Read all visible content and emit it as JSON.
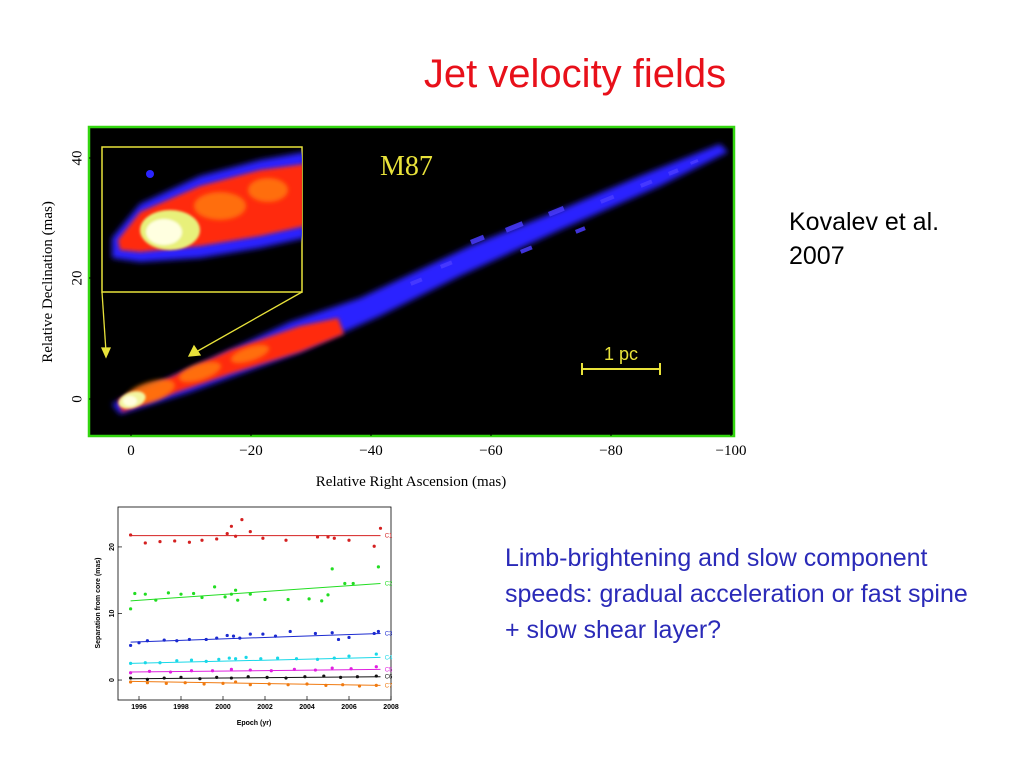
{
  "slide": {
    "title": "Jet velocity fields",
    "citation_line1": "Kovalev et al.",
    "citation_line2": "2007",
    "caption": "Limb-brightening and slow component speeds: gradual acceleration or fast spine + slow shear layer?"
  },
  "image_panel": {
    "label": "M87",
    "scale_bar_label": "1 pc",
    "xlabel": "Relative Right Ascension (mas)",
    "ylabel": "Relative Declination (mas)",
    "x_ticks": [
      "0",
      "−20",
      "−40",
      "−60",
      "−80",
      "−100"
    ],
    "y_ticks": [
      "0",
      "20",
      "40"
    ],
    "colors": {
      "jet_bright": "#ff2a10",
      "jet_core": "#f3f5a0",
      "jet_outer": "#2a24ff",
      "frame": "#33d60f",
      "callout": "#e8e23a"
    }
  },
  "chart_data": {
    "type": "scatter",
    "xlabel": "Epoch (yr)",
    "ylabel": "Separation from core (mas)",
    "x_ticks": [
      1996,
      1998,
      2000,
      2002,
      2004,
      2006,
      2008
    ],
    "y_ticks": [
      0,
      10,
      20
    ],
    "xlim": [
      1995,
      2008
    ],
    "ylim": [
      -3,
      26
    ],
    "series": [
      {
        "name": "C1",
        "color": "#d42020",
        "fit": [
          21.7,
          21.7
        ],
        "points": [
          [
            1995.6,
            21.8
          ],
          [
            1996.3,
            20.6
          ],
          [
            1997.0,
            20.8
          ],
          [
            1997.7,
            20.9
          ],
          [
            1998.4,
            20.7
          ],
          [
            1999.0,
            21.0
          ],
          [
            1999.7,
            21.2
          ],
          [
            2000.2,
            22.0
          ],
          [
            2000.4,
            23.1
          ],
          [
            2000.6,
            21.6
          ],
          [
            2000.9,
            24.1
          ],
          [
            2001.3,
            22.3
          ],
          [
            2001.9,
            21.3
          ],
          [
            2003.0,
            21.0
          ],
          [
            2004.5,
            21.5
          ],
          [
            2005.0,
            21.5
          ],
          [
            2005.3,
            21.3
          ],
          [
            2006.0,
            21.0
          ],
          [
            2007.2,
            20.1
          ],
          [
            2007.5,
            22.8
          ]
        ]
      },
      {
        "name": "C2",
        "color": "#22dd22",
        "fit": [
          11.9,
          14.5
        ],
        "points": [
          [
            1995.6,
            10.7
          ],
          [
            1995.8,
            13.0
          ],
          [
            1996.3,
            12.9
          ],
          [
            1996.8,
            12.0
          ],
          [
            1997.4,
            13.1
          ],
          [
            1998.0,
            12.9
          ],
          [
            1998.6,
            13.0
          ],
          [
            1999.0,
            12.4
          ],
          [
            1999.6,
            14.0
          ],
          [
            2000.1,
            12.5
          ],
          [
            2000.4,
            12.9
          ],
          [
            2000.6,
            13.5
          ],
          [
            2000.7,
            12.0
          ],
          [
            2001.3,
            12.9
          ],
          [
            2002.0,
            12.1
          ],
          [
            2003.1,
            12.1
          ],
          [
            2004.1,
            12.2
          ],
          [
            2004.7,
            11.9
          ],
          [
            2005.0,
            12.8
          ],
          [
            2005.2,
            16.7
          ],
          [
            2005.8,
            14.5
          ],
          [
            2006.2,
            14.5
          ],
          [
            2007.4,
            17.0
          ]
        ]
      },
      {
        "name": "C3",
        "color": "#1b2ad0",
        "fit": [
          5.7,
          7.0
        ],
        "points": [
          [
            1995.6,
            5.2
          ],
          [
            1996.0,
            5.6
          ],
          [
            1996.4,
            5.9
          ],
          [
            1997.2,
            6.0
          ],
          [
            1997.8,
            5.9
          ],
          [
            1998.4,
            6.1
          ],
          [
            1999.2,
            6.1
          ],
          [
            1999.7,
            6.3
          ],
          [
            2000.2,
            6.7
          ],
          [
            2000.5,
            6.6
          ],
          [
            2000.8,
            6.3
          ],
          [
            2001.3,
            6.9
          ],
          [
            2001.9,
            6.9
          ],
          [
            2002.5,
            6.6
          ],
          [
            2003.2,
            7.3
          ],
          [
            2004.4,
            7.0
          ],
          [
            2005.2,
            7.1
          ],
          [
            2005.5,
            6.1
          ],
          [
            2006.0,
            6.4
          ],
          [
            2007.2,
            7.0
          ],
          [
            2007.4,
            7.3
          ]
        ]
      },
      {
        "name": "C4",
        "color": "#18d8e8",
        "fit": [
          2.5,
          3.4
        ],
        "points": [
          [
            1995.6,
            2.5
          ],
          [
            1996.3,
            2.6
          ],
          [
            1997.0,
            2.6
          ],
          [
            1997.8,
            2.9
          ],
          [
            1998.5,
            3.0
          ],
          [
            1999.2,
            2.8
          ],
          [
            1999.8,
            3.1
          ],
          [
            2000.3,
            3.3
          ],
          [
            2000.6,
            3.2
          ],
          [
            2001.1,
            3.4
          ],
          [
            2001.8,
            3.2
          ],
          [
            2002.6,
            3.3
          ],
          [
            2003.5,
            3.2
          ],
          [
            2004.5,
            3.1
          ],
          [
            2005.3,
            3.3
          ],
          [
            2006.0,
            3.6
          ],
          [
            2007.3,
            3.9
          ]
        ]
      },
      {
        "name": "C5",
        "color": "#e020e0",
        "fit": [
          1.2,
          1.6
        ],
        "points": [
          [
            1995.6,
            1.1
          ],
          [
            1996.5,
            1.3
          ],
          [
            1997.5,
            1.2
          ],
          [
            1998.5,
            1.4
          ],
          [
            1999.5,
            1.4
          ],
          [
            2000.4,
            1.6
          ],
          [
            2001.3,
            1.5
          ],
          [
            2002.3,
            1.4
          ],
          [
            2003.4,
            1.6
          ],
          [
            2004.4,
            1.5
          ],
          [
            2005.2,
            1.8
          ],
          [
            2006.1,
            1.7
          ],
          [
            2007.3,
            2.0
          ]
        ]
      },
      {
        "name": "C6",
        "color": "#111111",
        "fit": [
          0.2,
          0.5
        ],
        "points": [
          [
            1995.6,
            0.3
          ],
          [
            1996.4,
            0.1
          ],
          [
            1997.2,
            0.3
          ],
          [
            1998.0,
            0.4
          ],
          [
            1998.9,
            0.2
          ],
          [
            1999.7,
            0.4
          ],
          [
            2000.4,
            0.3
          ],
          [
            2001.2,
            0.5
          ],
          [
            2002.1,
            0.4
          ],
          [
            2003.0,
            0.3
          ],
          [
            2003.9,
            0.5
          ],
          [
            2004.8,
            0.6
          ],
          [
            2005.6,
            0.4
          ],
          [
            2006.4,
            0.5
          ],
          [
            2007.3,
            0.6
          ]
        ]
      },
      {
        "name": "C7",
        "color": "#f07a10",
        "fit": [
          -0.2,
          -0.8
        ],
        "points": [
          [
            1995.6,
            -0.3
          ],
          [
            1996.4,
            -0.4
          ],
          [
            1997.3,
            -0.5
          ],
          [
            1998.2,
            -0.4
          ],
          [
            1999.1,
            -0.6
          ],
          [
            2000.0,
            -0.5
          ],
          [
            2000.6,
            -0.3
          ],
          [
            2001.3,
            -0.7
          ],
          [
            2002.2,
            -0.6
          ],
          [
            2003.1,
            -0.7
          ],
          [
            2004.0,
            -0.6
          ],
          [
            2004.9,
            -0.8
          ],
          [
            2005.7,
            -0.7
          ],
          [
            2006.5,
            -0.9
          ],
          [
            2007.3,
            -0.8
          ]
        ]
      }
    ]
  }
}
